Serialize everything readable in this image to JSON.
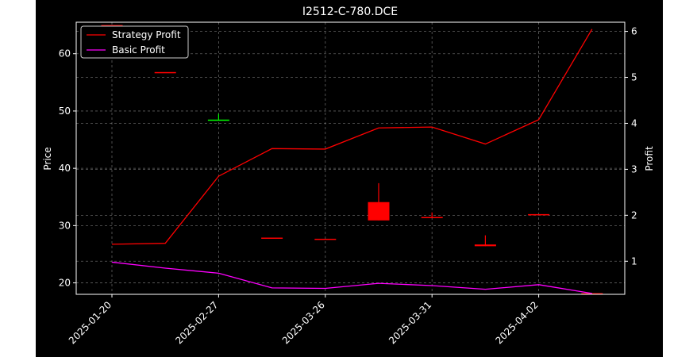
{
  "chart_data": {
    "type": "candlestick+line",
    "title": "I2512-C-780.DCE",
    "ylabel_left": "Price",
    "ylabel_right": "Profit",
    "xlabel": "",
    "ylim_left": [
      18,
      65.5
    ],
    "ylim_right": [
      0.28,
      6.2
    ],
    "grid": true,
    "legend_position": "top-left",
    "background": "#000000",
    "x_tick_labels": [
      "2025-01-20",
      "2025-02-27",
      "2025-03-26",
      "2025-03-31",
      "2025-04-02"
    ],
    "x_tick_index": [
      0,
      2,
      4,
      6,
      8
    ],
    "candles": [
      {
        "i": 0,
        "open": 65.0,
        "close": 65.0,
        "high": 65.0,
        "low": 65.0,
        "color": "#ff0000"
      },
      {
        "i": 1,
        "open": 56.8,
        "close": 56.8,
        "high": 56.8,
        "low": 56.8,
        "color": "#ff0000"
      },
      {
        "i": 2,
        "open": 48.5,
        "close": 48.5,
        "high": 49.5,
        "low": 48.5,
        "color": "#00ff00"
      },
      {
        "i": 3,
        "open": 27.9,
        "close": 27.9,
        "high": 27.9,
        "low": 27.9,
        "color": "#ff0000"
      },
      {
        "i": 4,
        "open": 27.7,
        "close": 27.7,
        "high": 27.7,
        "low": 27.7,
        "color": "#ff0000"
      },
      {
        "i": 5,
        "open": 34.1,
        "close": 30.9,
        "high": 37.4,
        "low": 30.9,
        "color": "#ff0000"
      },
      {
        "i": 6,
        "open": 31.5,
        "close": 31.5,
        "high": 32.3,
        "low": 31.5,
        "color": "#ff0000"
      },
      {
        "i": 7,
        "open": 26.7,
        "close": 26.4,
        "high": 28.3,
        "low": 26.4,
        "color": "#ff0000"
      },
      {
        "i": 8,
        "open": 32.0,
        "close": 32.0,
        "high": 32.0,
        "low": 32.0,
        "color": "#ff0000"
      },
      {
        "i": 9,
        "open": 18.2,
        "close": 18.2,
        "high": 18.2,
        "low": 18.2,
        "color": "#ff0000"
      }
    ],
    "series": [
      {
        "name": "Strategy Profit",
        "color": "#ff0000",
        "values": [
          1.37,
          1.39,
          2.85,
          3.45,
          3.44,
          3.9,
          3.92,
          3.55,
          4.08,
          6.05
        ]
      },
      {
        "name": "Basic Profit",
        "color": "#ff00ff",
        "values": [
          0.98,
          0.85,
          0.74,
          0.42,
          0.41,
          0.52,
          0.47,
          0.39,
          0.49,
          0.3
        ]
      }
    ],
    "left_ticks": [
      20,
      30,
      40,
      50,
      60
    ],
    "right_ticks": [
      1,
      2,
      3,
      4,
      5,
      6
    ]
  }
}
